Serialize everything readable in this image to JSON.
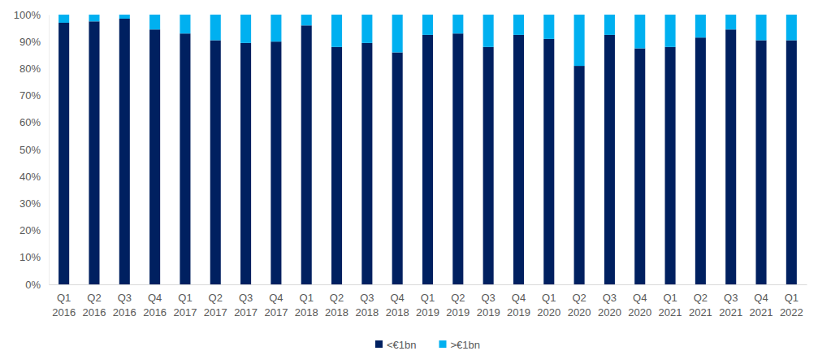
{
  "chart_data": {
    "type": "bar",
    "stacked": true,
    "legend": "bottom",
    "grid": false,
    "categories": [
      "Q1 2016",
      "Q2 2016",
      "Q3 2016",
      "Q4 2016",
      "Q1 2017",
      "Q2 2017",
      "Q3 2017",
      "Q4 2017",
      "Q1 2018",
      "Q2 2018",
      "Q3 2018",
      "Q4 2018",
      "Q1 2019",
      "Q2 2019",
      "Q3 2019",
      "Q4 2019",
      "Q1 2020",
      "Q2 2020",
      "Q3 2020",
      "Q4 2020",
      "Q1 2021",
      "Q2 2021",
      "Q3 2021",
      "Q4 2021",
      "Q1 2022"
    ],
    "series": [
      {
        "name": "<€1bn",
        "color": "#002060",
        "values": [
          97,
          97.5,
          98.5,
          94.5,
          93,
          90.5,
          89.5,
          90,
          96,
          88,
          89.5,
          86,
          92.5,
          93,
          88,
          92.5,
          91,
          81,
          92.5,
          87.5,
          88,
          91.5,
          94.5,
          90.5,
          90.5
        ]
      },
      {
        "name": ">€1bn",
        "color": "#00b0f0",
        "values": [
          3,
          2.5,
          1.5,
          5.5,
          7,
          9.5,
          10.5,
          10,
          4,
          12,
          10.5,
          14,
          7.5,
          7,
          12,
          7.5,
          9,
          19,
          7.5,
          12.5,
          12,
          8.5,
          5.5,
          9.5,
          9.5
        ]
      }
    ],
    "ylim": [
      0,
      100
    ],
    "yticks": [
      {
        "value": 0,
        "label": "0%"
      },
      {
        "value": 10,
        "label": "10%"
      },
      {
        "value": 20,
        "label": "20%"
      },
      {
        "value": 30,
        "label": "30%"
      },
      {
        "value": 40,
        "label": "40%"
      },
      {
        "value": 50,
        "label": "50%"
      },
      {
        "value": 60,
        "label": "60%"
      },
      {
        "value": 70,
        "label": "70%"
      },
      {
        "value": 80,
        "label": "80%"
      },
      {
        "value": 90,
        "label": "90%"
      },
      {
        "value": 100,
        "label": "100%"
      }
    ]
  }
}
